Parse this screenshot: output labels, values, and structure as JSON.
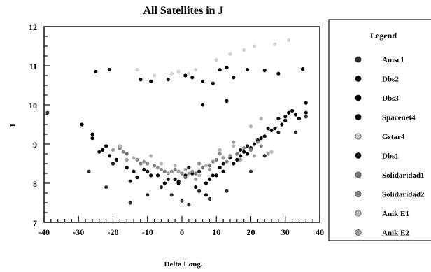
{
  "chart_data": {
    "type": "scatter",
    "title": "All Satellites in J",
    "xlabel": "Delta Long.",
    "ylabel": "J",
    "xlim": [
      -40,
      40
    ],
    "ylim": [
      7,
      12
    ],
    "x_ticks": [
      -40,
      -30,
      -20,
      -10,
      0,
      10,
      20,
      30,
      40
    ],
    "y_ticks": [
      7,
      8,
      9,
      10,
      11,
      12
    ],
    "grid": false,
    "legend_position": "right",
    "legend_title": "Legend",
    "series": [
      {
        "name": "Amsc1",
        "color": "#2a2a2a",
        "points": [
          [
            -39,
            9.8
          ],
          [
            -27,
            8.3
          ],
          [
            -22,
            7.9
          ],
          [
            -15,
            7.5
          ],
          [
            -10,
            7.7
          ],
          [
            -6,
            7.9
          ],
          [
            -3,
            7.7
          ],
          [
            0,
            7.55
          ],
          [
            2,
            7.45
          ],
          [
            5,
            7.8
          ],
          [
            8,
            7.6
          ],
          [
            13,
            7.8
          ],
          [
            20,
            8.3
          ],
          [
            24,
            8.7
          ],
          [
            28,
            9.3
          ],
          [
            33,
            9.3
          ],
          [
            36,
            9.7
          ]
        ]
      },
      {
        "name": "Dbs2",
        "color": "#000000",
        "points": [
          [
            -25,
            10.85
          ],
          [
            -21,
            10.9
          ],
          [
            -12,
            10.65
          ],
          [
            -9,
            10.6
          ],
          [
            -4,
            10.65
          ],
          [
            1,
            10.75
          ],
          [
            3,
            10.7
          ],
          [
            6,
            10.6
          ],
          [
            9,
            10.55
          ],
          [
            11,
            10.9
          ],
          [
            13,
            10.95
          ],
          [
            15,
            10.7
          ],
          [
            19,
            10.9
          ],
          [
            24,
            10.88
          ],
          [
            28,
            10.8
          ],
          [
            35,
            10.92
          ]
        ]
      },
      {
        "name": "Dbs3",
        "color": "#000000",
        "points": [
          [
            -29,
            9.5
          ],
          [
            -26,
            9.15
          ],
          [
            -23,
            8.85
          ],
          [
            -21,
            8.7
          ],
          [
            -16,
            8.4
          ],
          [
            -14,
            8.3
          ],
          [
            -9,
            8.2
          ],
          [
            -4,
            8.1
          ],
          [
            -1,
            8.0
          ],
          [
            1,
            8.2
          ],
          [
            4,
            7.9
          ],
          [
            7,
            8.0
          ],
          [
            10,
            8.2
          ],
          [
            12,
            8.3
          ],
          [
            16,
            8.6
          ],
          [
            18,
            8.8
          ],
          [
            20,
            8.9
          ],
          [
            24,
            9.2
          ],
          [
            27,
            9.4
          ],
          [
            30,
            9.6
          ],
          [
            33,
            9.75
          ],
          [
            36,
            9.8
          ]
        ]
      },
      {
        "name": "Spacenet4",
        "color": "#000000",
        "points": [
          [
            -26,
            9.25
          ],
          [
            -22,
            8.95
          ],
          [
            -19,
            8.6
          ],
          [
            -13,
            8.15
          ],
          [
            -11,
            8.35
          ],
          [
            -7,
            8.2
          ],
          [
            -2,
            8.1
          ],
          [
            3,
            8.25
          ],
          [
            6,
            10.0
          ],
          [
            8,
            8.1
          ],
          [
            11,
            8.4
          ],
          [
            13,
            10.1
          ],
          [
            15,
            8.5
          ],
          [
            17,
            8.7
          ],
          [
            19,
            8.75
          ],
          [
            21,
            9.0
          ],
          [
            23,
            9.15
          ],
          [
            26,
            9.35
          ],
          [
            29,
            9.5
          ],
          [
            31,
            9.8
          ],
          [
            34,
            9.65
          ],
          [
            36,
            10.05
          ]
        ]
      },
      {
        "name": "Gstar4",
        "color": "#d2d2d2",
        "points": [
          [
            -13,
            10.9
          ],
          [
            -8,
            10.75
          ],
          [
            -3,
            10.8
          ],
          [
            -1,
            10.85
          ],
          [
            2,
            10.8
          ],
          [
            4,
            10.9
          ],
          [
            10,
            11.15
          ],
          [
            14,
            11.3
          ],
          [
            18,
            11.4
          ],
          [
            21,
            11.5
          ],
          [
            27,
            11.55
          ],
          [
            31,
            11.65
          ]
        ]
      },
      {
        "name": "Dbs1",
        "color": "#111111",
        "points": [
          [
            -24,
            8.8
          ],
          [
            -20,
            8.5
          ],
          [
            -15,
            8.05
          ],
          [
            -10,
            8.3
          ],
          [
            -5,
            8.0
          ],
          [
            -1,
            8.05
          ],
          [
            2,
            8.4
          ],
          [
            5,
            8.3
          ],
          [
            7,
            7.7
          ],
          [
            9,
            8.2
          ],
          [
            12,
            8.5
          ],
          [
            14,
            8.65
          ],
          [
            17,
            8.85
          ],
          [
            19,
            8.95
          ],
          [
            22,
            9.1
          ],
          [
            25,
            9.4
          ],
          [
            28,
            9.65
          ],
          [
            30,
            9.7
          ],
          [
            32,
            9.85
          ]
        ]
      },
      {
        "name": "Solidaridad1",
        "color": "#7a7a7a",
        "points": [
          [
            -18,
            8.9
          ],
          [
            -16,
            8.75
          ],
          [
            -12,
            8.5
          ],
          [
            -8,
            8.45
          ],
          [
            -5,
            8.3
          ],
          [
            -2,
            8.35
          ],
          [
            1,
            8.15
          ],
          [
            4,
            8.25
          ],
          [
            6,
            8.4
          ],
          [
            8,
            8.45
          ],
          [
            10,
            8.6
          ],
          [
            13,
            8.55
          ],
          [
            16,
            8.75
          ],
          [
            20,
            8.85
          ],
          [
            23,
            8.95
          ]
        ]
      },
      {
        "name": "Solidaridad2",
        "color": "#8a8a8a",
        "points": [
          [
            -17,
            8.8
          ],
          [
            -13,
            8.6
          ],
          [
            -10,
            8.5
          ],
          [
            -6,
            8.35
          ],
          [
            -3,
            8.3
          ],
          [
            0,
            8.25
          ],
          [
            3,
            8.3
          ],
          [
            5,
            8.5
          ],
          [
            9,
            8.55
          ],
          [
            11,
            8.75
          ],
          [
            14,
            8.7
          ],
          [
            18,
            8.9
          ],
          [
            22,
            9.05
          ]
        ]
      },
      {
        "name": "Anik E1",
        "color": "#b4b4b4",
        "points": [
          [
            -18,
            8.95
          ],
          [
            -14,
            8.65
          ],
          [
            -9,
            8.7
          ],
          [
            -6,
            8.5
          ],
          [
            -2,
            8.45
          ],
          [
            1,
            8.35
          ],
          [
            5,
            8.2
          ],
          [
            7,
            8.45
          ],
          [
            11,
            8.85
          ],
          [
            15,
            8.95
          ],
          [
            20,
            9.45
          ],
          [
            23,
            9.65
          ],
          [
            26,
            8.8
          ]
        ]
      },
      {
        "name": "Anik E2",
        "color": "#9a9a9a",
        "points": [
          [
            -20,
            8.85
          ],
          [
            -16,
            8.6
          ],
          [
            -11,
            8.55
          ],
          [
            -7,
            8.4
          ],
          [
            -4,
            8.25
          ],
          [
            -1,
            8.3
          ],
          [
            2,
            8.25
          ],
          [
            4,
            8.1
          ],
          [
            8,
            8.35
          ],
          [
            12,
            8.65
          ],
          [
            15,
            9.05
          ],
          [
            17,
            8.6
          ],
          [
            21,
            8.7
          ],
          [
            25,
            8.75
          ]
        ]
      }
    ]
  }
}
